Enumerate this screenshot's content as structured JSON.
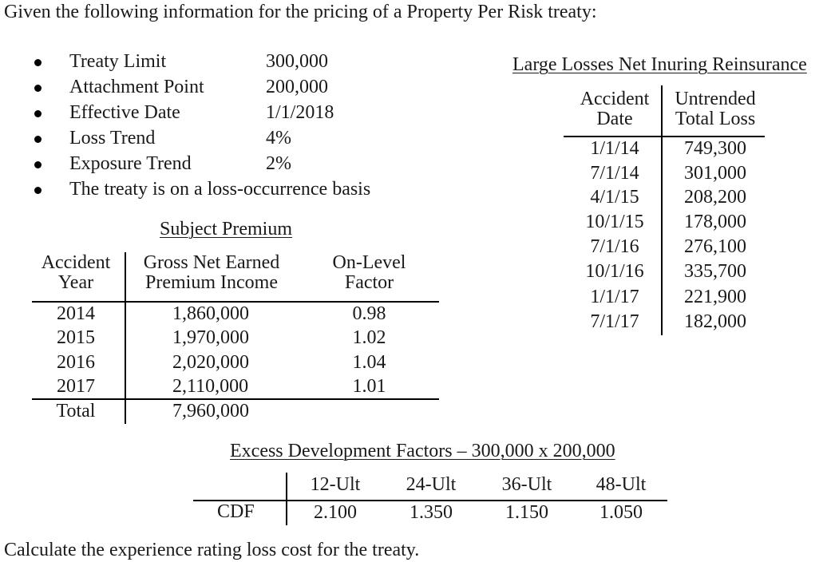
{
  "intro": "Given the following information for the pricing of a Property Per Risk treaty:",
  "bullets": [
    {
      "label": "Treaty Limit",
      "value": "300,000"
    },
    {
      "label": "Attachment Point",
      "value": "200,000"
    },
    {
      "label": "Effective Date",
      "value": "1/1/2018"
    },
    {
      "label": "Loss Trend",
      "value": "4%"
    },
    {
      "label": "Exposure Trend",
      "value": "2%"
    },
    {
      "label": "The treaty is on a loss-occurrence basis",
      "value": ""
    }
  ],
  "subject_premium": {
    "title": "Subject Premium",
    "headers": [
      {
        "line1": "Accident",
        "line2": "Year"
      },
      {
        "line1": "Gross Net Earned",
        "line2": "Premium Income"
      },
      {
        "line1": "On-Level",
        "line2": "Factor"
      }
    ],
    "rows": [
      {
        "year": "2014",
        "premium": "1,860,000",
        "olf": "0.98"
      },
      {
        "year": "2015",
        "premium": "1,970,000",
        "olf": "1.02"
      },
      {
        "year": "2016",
        "premium": "2,020,000",
        "olf": "1.04"
      },
      {
        "year": "2017",
        "premium": "2,110,000",
        "olf": "1.01"
      }
    ],
    "total": {
      "label": "Total",
      "premium": "7,960,000"
    }
  },
  "large_losses": {
    "title": "Large Losses Net Inuring Reinsurance",
    "headers": [
      {
        "line1": "Accident",
        "line2": "Date"
      },
      {
        "line1": "Untrended",
        "line2": "Total Loss"
      }
    ],
    "rows": [
      {
        "date": "1/1/14",
        "loss": "749,300"
      },
      {
        "date": "7/1/14",
        "loss": "301,000"
      },
      {
        "date": "4/1/15",
        "loss": "208,200"
      },
      {
        "date": "10/1/15",
        "loss": "178,000"
      },
      {
        "date": "7/1/16",
        "loss": "276,100"
      },
      {
        "date": "10/1/16",
        "loss": "335,700"
      },
      {
        "date": "1/1/17",
        "loss": "221,900"
      },
      {
        "date": "7/1/17",
        "loss": "182,000"
      }
    ]
  },
  "xs_dev": {
    "title": "Excess Development Factors – 300,000 x 200,000",
    "headers": [
      "12-Ult",
      "24-Ult",
      "36-Ult",
      "48-Ult"
    ],
    "row_label": "CDF",
    "values": [
      "2.100",
      "1.350",
      "1.150",
      "1.050"
    ]
  },
  "question": "Calculate the experience rating loss cost for the treaty."
}
